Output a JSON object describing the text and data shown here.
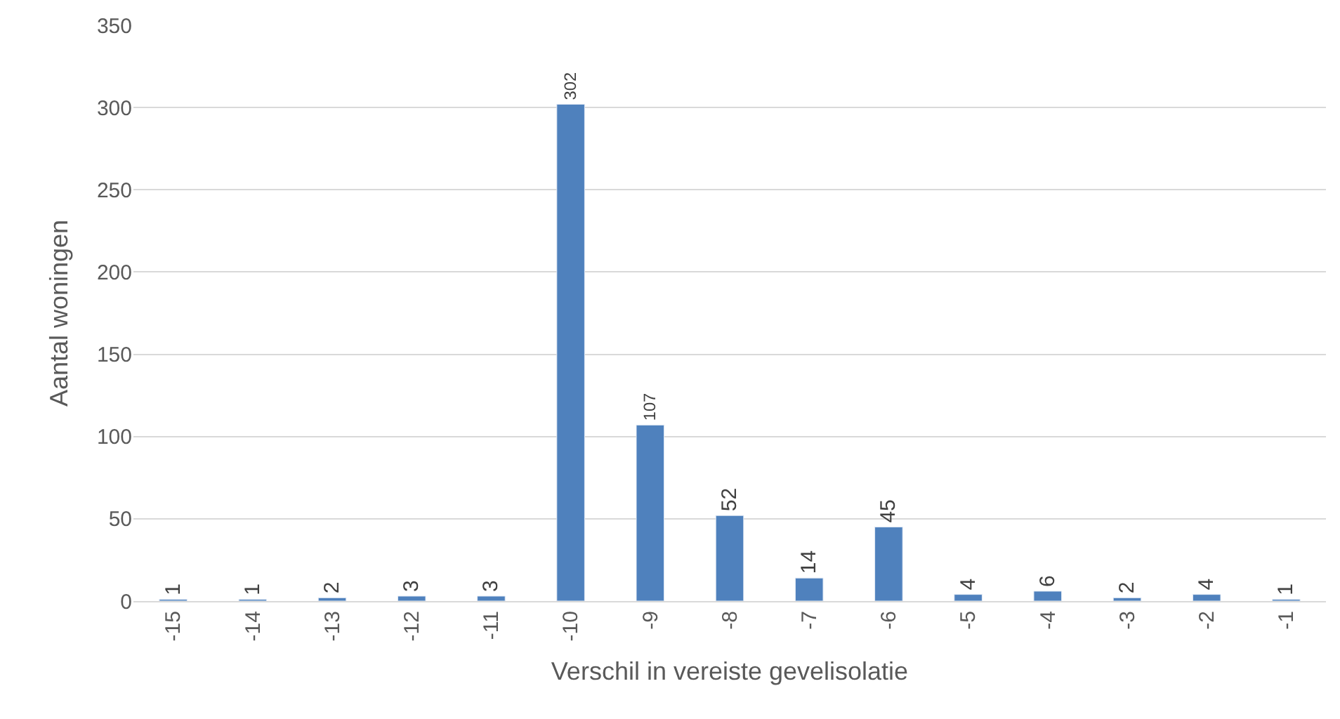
{
  "chart_data": {
    "type": "bar",
    "xlabel": "Verschil in vereiste gevelisolatie",
    "ylabel": "Aantal woningen",
    "categories": [
      "-15",
      "-14",
      "-13",
      "-12",
      "-11",
      "-10",
      "-9",
      "-8",
      "-7",
      "-6",
      "-5",
      "-4",
      "-3",
      "-2",
      "-1"
    ],
    "values": [
      1,
      1,
      2,
      3,
      3,
      302,
      107,
      52,
      14,
      45,
      4,
      6,
      2,
      4,
      1
    ],
    "color": "#4f81bd",
    "ylim": [
      0,
      350
    ],
    "yticks": [
      0,
      50,
      100,
      150,
      200,
      250,
      300,
      350
    ],
    "grid": "y",
    "data_labels": true,
    "legend": false
  }
}
